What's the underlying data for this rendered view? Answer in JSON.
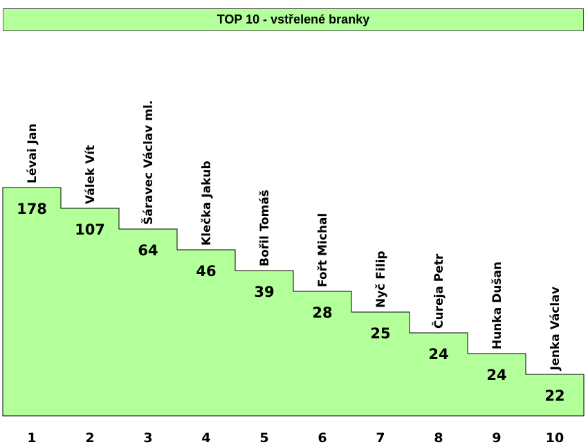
{
  "title": "TOP 10 - vstřelené branky",
  "colors": {
    "fill": "#b3ff9a",
    "stroke": "#000000"
  },
  "chart_data": {
    "type": "bar",
    "title": "TOP 10 - vstřelené branky",
    "categories": [
      "1",
      "2",
      "3",
      "4",
      "5",
      "6",
      "7",
      "8",
      "9",
      "10"
    ],
    "players": [
      "Lévai Jan",
      "Válek Vít",
      "Šáravec Václav ml.",
      "Klečka Jakub",
      "Bořil Tomáš",
      "Fořt Michal",
      "Nyč Filip",
      "Čureja Petr",
      "Hunka Dušan",
      "Jenka Václav"
    ],
    "values": [
      178,
      107,
      64,
      46,
      39,
      28,
      25,
      24,
      24,
      22
    ]
  }
}
